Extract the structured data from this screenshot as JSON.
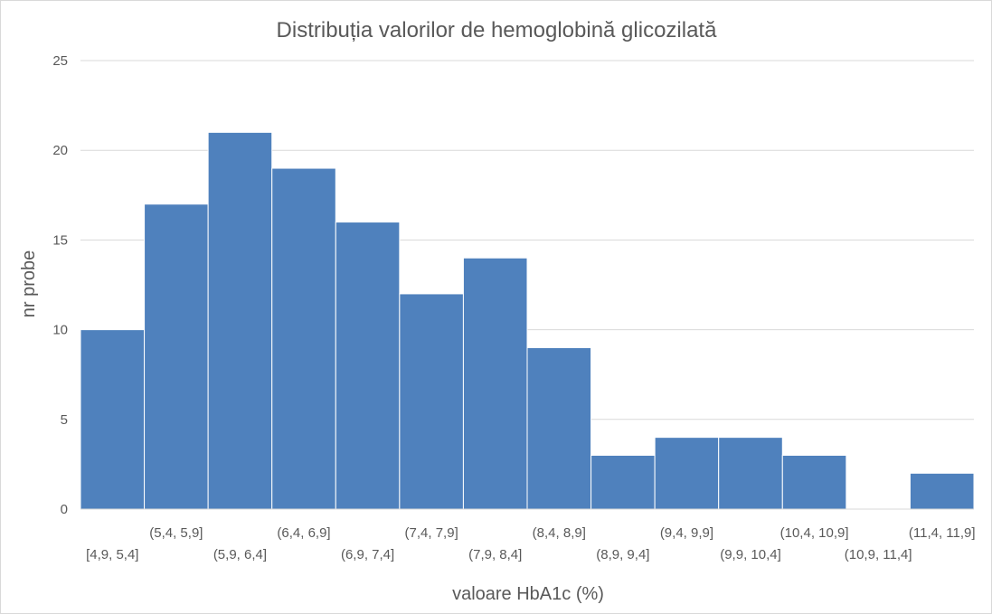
{
  "chart_data": {
    "type": "bar",
    "title": "Distribuția valorilor de hemoglobină glicozilată",
    "xlabel": "valoare HbA1c (%)",
    "ylabel": "nr probe",
    "categories": [
      "[4,9, 5,4]",
      "(5,4, 5,9]",
      "(5,9, 6,4]",
      "(6,4, 6,9]",
      "(6,9, 7,4]",
      "(7,4, 7,9]",
      "(7,9, 8,4]",
      "(8,4, 8,9]",
      "(8,9, 9,4]",
      "(9,4, 9,9]",
      "(9,9, 10,4]",
      "(10,4, 10,9]",
      "(10,9, 11,4]",
      "(11,4, 11,9]"
    ],
    "values": [
      10,
      17,
      21,
      19,
      16,
      12,
      14,
      9,
      3,
      4,
      4,
      3,
      0,
      2
    ],
    "ylim": [
      0,
      25
    ],
    "yticks": [
      0,
      5,
      10,
      15,
      20,
      25
    ],
    "grid": true,
    "legend": "none",
    "bar_color": "#4f81bd"
  }
}
